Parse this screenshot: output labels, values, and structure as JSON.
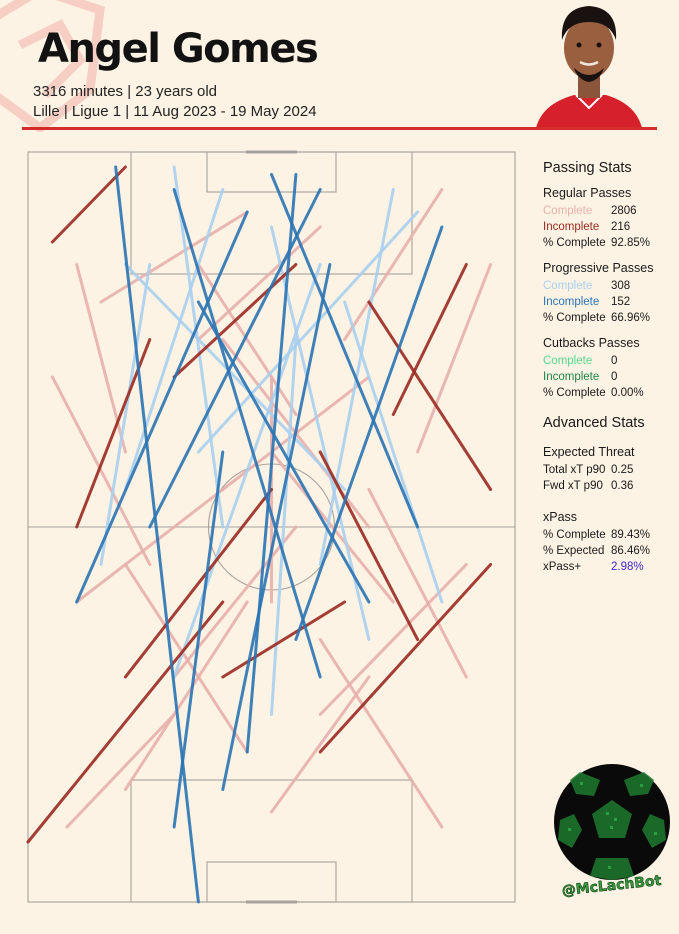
{
  "header": {
    "title": "Angel Gomes",
    "line1": "3316 minutes | 23 years old",
    "line2": "Lille | Ligue 1 | 11 Aug 2023 - 19 May 2024"
  },
  "colors": {
    "regular_complete": "#e8b0ad",
    "regular_incomplete": "#9b2a22",
    "progressive_complete": "#a9d0f0",
    "progressive_incomplete": "#2b74b4",
    "cutback_complete": "#58d68d",
    "cutback_incomplete": "#1e8449",
    "accent_red": "#d42b2b",
    "xpass_plus": "#3b28c9"
  },
  "stats": {
    "passing_title": "Passing Stats",
    "regular": {
      "title": "Regular Passes",
      "complete_label": "Complete",
      "complete": "2806",
      "incomplete_label": "Incomplete",
      "incomplete": "216",
      "pct_label": "% Complete",
      "pct": "92.85%"
    },
    "progressive": {
      "title": "Progressive Passes",
      "complete_label": "Complete",
      "complete": "308",
      "incomplete_label": "Incomplete",
      "incomplete": "152",
      "pct_label": "% Complete",
      "pct": "66.96%"
    },
    "cutbacks": {
      "title": "Cutbacks Passes",
      "complete_label": "Complete",
      "complete": "0",
      "incomplete_label": "Incomplete",
      "incomplete": "0",
      "pct_label": "% Complete",
      "pct": "0.00%"
    },
    "advanced_title": "Advanced Stats",
    "xt": {
      "title": "Expected Threat",
      "total_label": "Total xT p90",
      "total": "0.25",
      "fwd_label": "Fwd xT p90",
      "fwd": "0.36"
    },
    "xpass": {
      "title": "xPass",
      "complete_label": "% Complete",
      "complete": "89.43%",
      "expected_label": "% Expected",
      "expected": "86.46%",
      "plus_label": "xPass+",
      "plus": "2.98%"
    }
  },
  "logo": {
    "handle": "@McLachBot"
  },
  "chart_data": {
    "type": "pass_map",
    "pitch": {
      "length": 100,
      "width": 100,
      "attack_direction": "up"
    },
    "series": [
      {
        "name": "Complete",
        "group": "Regular Passes",
        "count": 2806,
        "color": "#e8b0ad",
        "sample_passes": [
          [
            8,
            10,
            30,
            25
          ],
          [
            20,
            15,
            45,
            40
          ],
          [
            50,
            12,
            70,
            30
          ],
          [
            85,
            10,
            60,
            35
          ],
          [
            30,
            30,
            55,
            50
          ],
          [
            60,
            25,
            90,
            45
          ],
          [
            10,
            40,
            40,
            55
          ],
          [
            75,
            40,
            50,
            60
          ],
          [
            40,
            55,
            70,
            70
          ],
          [
            20,
            60,
            10,
            85
          ],
          [
            55,
            65,
            35,
            85
          ],
          [
            80,
            60,
            95,
            85
          ],
          [
            35,
            75,
            60,
            90
          ],
          [
            65,
            75,
            85,
            95
          ],
          [
            15,
            80,
            45,
            92
          ],
          [
            45,
            20,
            20,
            45
          ],
          [
            70,
            50,
            40,
            75
          ],
          [
            25,
            45,
            5,
            70
          ],
          [
            90,
            30,
            70,
            55
          ],
          [
            50,
            40,
            50,
            70
          ]
        ]
      },
      {
        "name": "Incomplete",
        "group": "Regular Passes",
        "count": 216,
        "color": "#9b2a22",
        "sample_passes": [
          [
            0,
            8,
            40,
            40
          ],
          [
            60,
            20,
            95,
            45
          ],
          [
            10,
            50,
            25,
            75
          ],
          [
            80,
            35,
            60,
            60
          ],
          [
            30,
            70,
            55,
            85
          ],
          [
            95,
            55,
            70,
            80
          ],
          [
            5,
            88,
            20,
            98
          ],
          [
            40,
            30,
            65,
            40
          ],
          [
            75,
            65,
            90,
            85
          ],
          [
            20,
            30,
            50,
            55
          ]
        ]
      },
      {
        "name": "Complete",
        "group": "Progressive Passes",
        "count": 308,
        "color": "#a9d0f0",
        "sample_passes": [
          [
            20,
            55,
            40,
            95
          ],
          [
            40,
            50,
            30,
            98
          ],
          [
            60,
            45,
            75,
            95
          ],
          [
            30,
            30,
            60,
            85
          ],
          [
            70,
            35,
            50,
            90
          ],
          [
            15,
            45,
            25,
            85
          ],
          [
            85,
            40,
            65,
            80
          ],
          [
            50,
            25,
            55,
            75
          ],
          [
            35,
            60,
            80,
            92
          ],
          [
            65,
            55,
            20,
            85
          ]
        ]
      },
      {
        "name": "Incomplete",
        "group": "Progressive Passes",
        "count": 152,
        "color": "#2b74b4",
        "sample_passes": [
          [
            30,
            10,
            40,
            60
          ],
          [
            35,
            0,
            18,
            98
          ],
          [
            45,
            20,
            55,
            97
          ],
          [
            10,
            40,
            45,
            92
          ],
          [
            60,
            30,
            30,
            95
          ],
          [
            80,
            50,
            50,
            97
          ],
          [
            55,
            35,
            85,
            90
          ],
          [
            25,
            50,
            60,
            95
          ],
          [
            70,
            40,
            35,
            80
          ],
          [
            40,
            15,
            62,
            85
          ]
        ]
      },
      {
        "name": "Complete",
        "group": "Cutbacks Passes",
        "count": 0,
        "color": "#58d68d",
        "sample_passes": []
      },
      {
        "name": "Incomplete",
        "group": "Cutbacks Passes",
        "count": 0,
        "color": "#1e8449",
        "sample_passes": []
      }
    ]
  }
}
